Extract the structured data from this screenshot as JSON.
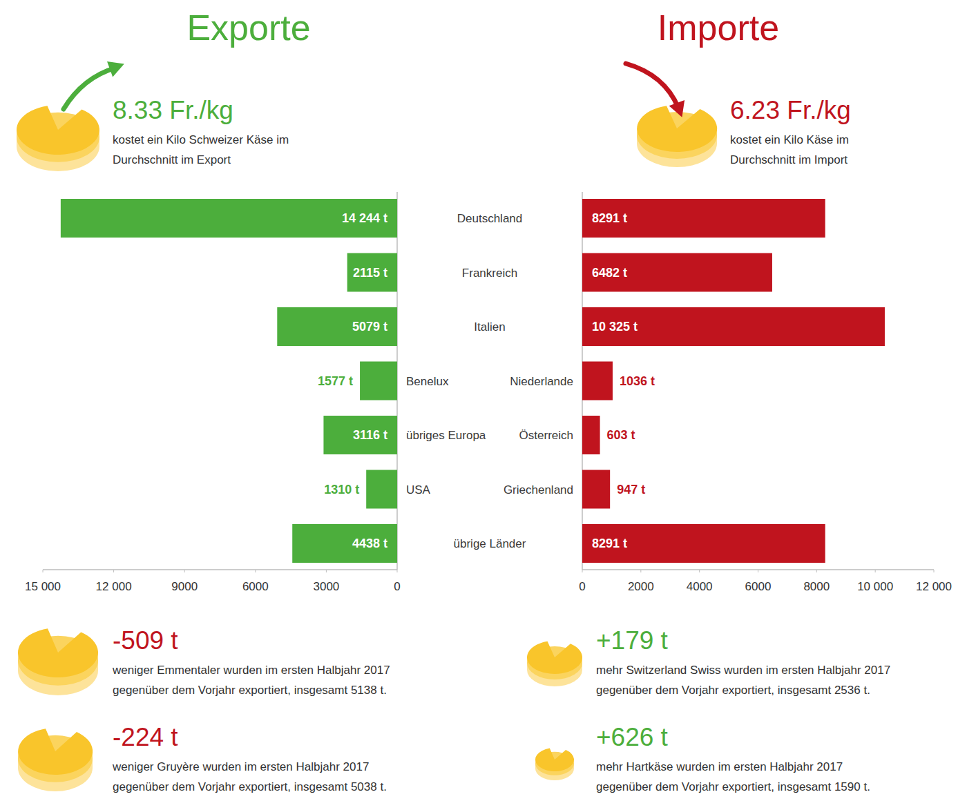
{
  "chart_data": [
    {
      "type": "bar",
      "title": "Exporte",
      "orientation": "horizontal",
      "data_labels": true,
      "color": "#4cae3c",
      "annotations": [
        {
          "text": "8.33 Fr./kg",
          "color": "#4cae3c",
          "lines": [
            "kostet ein Kilo Schweizer Käse im",
            "Durchschnitt im Export"
          ]
        },
        {
          "text": "-509 t",
          "color": "#c0141e",
          "lines": [
            "weniger Emmentaler wurden im ersten Halbjahr 2017",
            "gegenüber dem Vorjahr exportiert, insgesamt 5138 t."
          ]
        },
        {
          "text": "-224 t",
          "color": "#c0141e",
          "lines": [
            "weniger Gruyère wurden im ersten Halbjahr 2017",
            "gegenüber dem Vorjahr exportiert, insgesamt 5038 t."
          ]
        }
      ],
      "categories": [
        "Deutschland",
        "Frankreich",
        "Italien",
        "Benelux",
        "übriges Europa",
        "USA",
        "übrige Länder"
      ],
      "values": [
        14244,
        2115,
        5079,
        1577,
        3116,
        1310,
        4438
      ],
      "value_labels": [
        "14 244 t",
        "2115 t",
        "5079 t",
        "1577 t",
        "3116 t",
        "1310 t",
        "4438 t"
      ],
      "xlim": [
        15000,
        0
      ],
      "xticks": [
        {
          "value": 15000,
          "label": "15 000"
        },
        {
          "value": 12000,
          "label": "12 000"
        },
        9000,
        6000,
        3000,
        0
      ]
    },
    {
      "type": "bar",
      "title": "Importe",
      "orientation": "horizontal",
      "data_labels": true,
      "color": "#c0141e",
      "annotations": [
        {
          "text": "6.23 Fr./kg",
          "color": "#c0141e",
          "lines": [
            "kostet ein Kilo Käse im",
            "Durchschnitt im Import"
          ]
        },
        {
          "text": "+179 t",
          "color": "#4cae3c",
          "lines": [
            "mehr Switzerland Swiss wurden im ersten Halbjahr 2017",
            "gegenüber dem Vorjahr exportiert, insgesamt 2536 t."
          ]
        },
        {
          "text": "+626 t",
          "color": "#4cae3c",
          "lines": [
            "mehr Hartkäse wurden im ersten Halbjahr 2017",
            "gegenüber dem Vorjahr exportiert, insgesamt 1590 t."
          ]
        }
      ],
      "categories": [
        null,
        null,
        null,
        "Niederlande",
        "Österreich",
        "Griechenland",
        null
      ],
      "values": [
        8291,
        6482,
        10325,
        1036,
        603,
        947,
        8291
      ],
      "value_labels": [
        "8291 t",
        "6482 t",
        "10 325 t",
        "1036 t",
        "603 t",
        "947 t",
        "8291 t"
      ],
      "xlim": [
        0,
        12000
      ],
      "xticks": [
        0,
        2000,
        4000,
        6000,
        8000,
        {
          "value": 10000,
          "label": "10 000"
        },
        {
          "value": 12000,
          "label": "12 000"
        }
      ]
    }
  ]
}
